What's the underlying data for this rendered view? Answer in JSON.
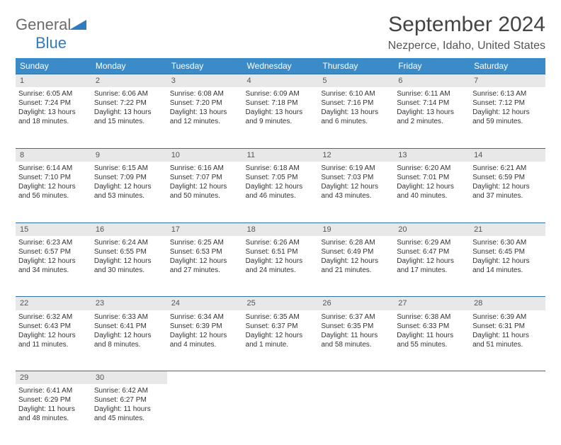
{
  "logo": {
    "part1": "General",
    "part2": "Blue"
  },
  "title": "September 2024",
  "subtitle": "Nezperce, Idaho, United States",
  "colors": {
    "header_bg": "#3b8bc9",
    "header_text": "#ffffff",
    "daynum_bg": "#e8e8e8",
    "border": "#2f6fa3",
    "text": "#333333"
  },
  "day_headers": [
    "Sunday",
    "Monday",
    "Tuesday",
    "Wednesday",
    "Thursday",
    "Friday",
    "Saturday"
  ],
  "weeks": [
    {
      "nums": [
        "1",
        "2",
        "3",
        "4",
        "5",
        "6",
        "7"
      ],
      "cells": [
        {
          "sunrise": "Sunrise: 6:05 AM",
          "sunset": "Sunset: 7:24 PM",
          "day1": "Daylight: 13 hours",
          "day2": "and 18 minutes."
        },
        {
          "sunrise": "Sunrise: 6:06 AM",
          "sunset": "Sunset: 7:22 PM",
          "day1": "Daylight: 13 hours",
          "day2": "and 15 minutes."
        },
        {
          "sunrise": "Sunrise: 6:08 AM",
          "sunset": "Sunset: 7:20 PM",
          "day1": "Daylight: 13 hours",
          "day2": "and 12 minutes."
        },
        {
          "sunrise": "Sunrise: 6:09 AM",
          "sunset": "Sunset: 7:18 PM",
          "day1": "Daylight: 13 hours",
          "day2": "and 9 minutes."
        },
        {
          "sunrise": "Sunrise: 6:10 AM",
          "sunset": "Sunset: 7:16 PM",
          "day1": "Daylight: 13 hours",
          "day2": "and 6 minutes."
        },
        {
          "sunrise": "Sunrise: 6:11 AM",
          "sunset": "Sunset: 7:14 PM",
          "day1": "Daylight: 13 hours",
          "day2": "and 2 minutes."
        },
        {
          "sunrise": "Sunrise: 6:13 AM",
          "sunset": "Sunset: 7:12 PM",
          "day1": "Daylight: 12 hours",
          "day2": "and 59 minutes."
        }
      ]
    },
    {
      "nums": [
        "8",
        "9",
        "10",
        "11",
        "12",
        "13",
        "14"
      ],
      "cells": [
        {
          "sunrise": "Sunrise: 6:14 AM",
          "sunset": "Sunset: 7:10 PM",
          "day1": "Daylight: 12 hours",
          "day2": "and 56 minutes."
        },
        {
          "sunrise": "Sunrise: 6:15 AM",
          "sunset": "Sunset: 7:09 PM",
          "day1": "Daylight: 12 hours",
          "day2": "and 53 minutes."
        },
        {
          "sunrise": "Sunrise: 6:16 AM",
          "sunset": "Sunset: 7:07 PM",
          "day1": "Daylight: 12 hours",
          "day2": "and 50 minutes."
        },
        {
          "sunrise": "Sunrise: 6:18 AM",
          "sunset": "Sunset: 7:05 PM",
          "day1": "Daylight: 12 hours",
          "day2": "and 46 minutes."
        },
        {
          "sunrise": "Sunrise: 6:19 AM",
          "sunset": "Sunset: 7:03 PM",
          "day1": "Daylight: 12 hours",
          "day2": "and 43 minutes."
        },
        {
          "sunrise": "Sunrise: 6:20 AM",
          "sunset": "Sunset: 7:01 PM",
          "day1": "Daylight: 12 hours",
          "day2": "and 40 minutes."
        },
        {
          "sunrise": "Sunrise: 6:21 AM",
          "sunset": "Sunset: 6:59 PM",
          "day1": "Daylight: 12 hours",
          "day2": "and 37 minutes."
        }
      ]
    },
    {
      "nums": [
        "15",
        "16",
        "17",
        "18",
        "19",
        "20",
        "21"
      ],
      "cells": [
        {
          "sunrise": "Sunrise: 6:23 AM",
          "sunset": "Sunset: 6:57 PM",
          "day1": "Daylight: 12 hours",
          "day2": "and 34 minutes."
        },
        {
          "sunrise": "Sunrise: 6:24 AM",
          "sunset": "Sunset: 6:55 PM",
          "day1": "Daylight: 12 hours",
          "day2": "and 30 minutes."
        },
        {
          "sunrise": "Sunrise: 6:25 AM",
          "sunset": "Sunset: 6:53 PM",
          "day1": "Daylight: 12 hours",
          "day2": "and 27 minutes."
        },
        {
          "sunrise": "Sunrise: 6:26 AM",
          "sunset": "Sunset: 6:51 PM",
          "day1": "Daylight: 12 hours",
          "day2": "and 24 minutes."
        },
        {
          "sunrise": "Sunrise: 6:28 AM",
          "sunset": "Sunset: 6:49 PM",
          "day1": "Daylight: 12 hours",
          "day2": "and 21 minutes."
        },
        {
          "sunrise": "Sunrise: 6:29 AM",
          "sunset": "Sunset: 6:47 PM",
          "day1": "Daylight: 12 hours",
          "day2": "and 17 minutes."
        },
        {
          "sunrise": "Sunrise: 6:30 AM",
          "sunset": "Sunset: 6:45 PM",
          "day1": "Daylight: 12 hours",
          "day2": "and 14 minutes."
        }
      ]
    },
    {
      "nums": [
        "22",
        "23",
        "24",
        "25",
        "26",
        "27",
        "28"
      ],
      "cells": [
        {
          "sunrise": "Sunrise: 6:32 AM",
          "sunset": "Sunset: 6:43 PM",
          "day1": "Daylight: 12 hours",
          "day2": "and 11 minutes."
        },
        {
          "sunrise": "Sunrise: 6:33 AM",
          "sunset": "Sunset: 6:41 PM",
          "day1": "Daylight: 12 hours",
          "day2": "and 8 minutes."
        },
        {
          "sunrise": "Sunrise: 6:34 AM",
          "sunset": "Sunset: 6:39 PM",
          "day1": "Daylight: 12 hours",
          "day2": "and 4 minutes."
        },
        {
          "sunrise": "Sunrise: 6:35 AM",
          "sunset": "Sunset: 6:37 PM",
          "day1": "Daylight: 12 hours",
          "day2": "and 1 minute."
        },
        {
          "sunrise": "Sunrise: 6:37 AM",
          "sunset": "Sunset: 6:35 PM",
          "day1": "Daylight: 11 hours",
          "day2": "and 58 minutes."
        },
        {
          "sunrise": "Sunrise: 6:38 AM",
          "sunset": "Sunset: 6:33 PM",
          "day1": "Daylight: 11 hours",
          "day2": "and 55 minutes."
        },
        {
          "sunrise": "Sunrise: 6:39 AM",
          "sunset": "Sunset: 6:31 PM",
          "day1": "Daylight: 11 hours",
          "day2": "and 51 minutes."
        }
      ]
    },
    {
      "nums": [
        "29",
        "30",
        "",
        "",
        "",
        "",
        ""
      ],
      "cells": [
        {
          "sunrise": "Sunrise: 6:41 AM",
          "sunset": "Sunset: 6:29 PM",
          "day1": "Daylight: 11 hours",
          "day2": "and 48 minutes."
        },
        {
          "sunrise": "Sunrise: 6:42 AM",
          "sunset": "Sunset: 6:27 PM",
          "day1": "Daylight: 11 hours",
          "day2": "and 45 minutes."
        },
        null,
        null,
        null,
        null,
        null
      ]
    }
  ]
}
